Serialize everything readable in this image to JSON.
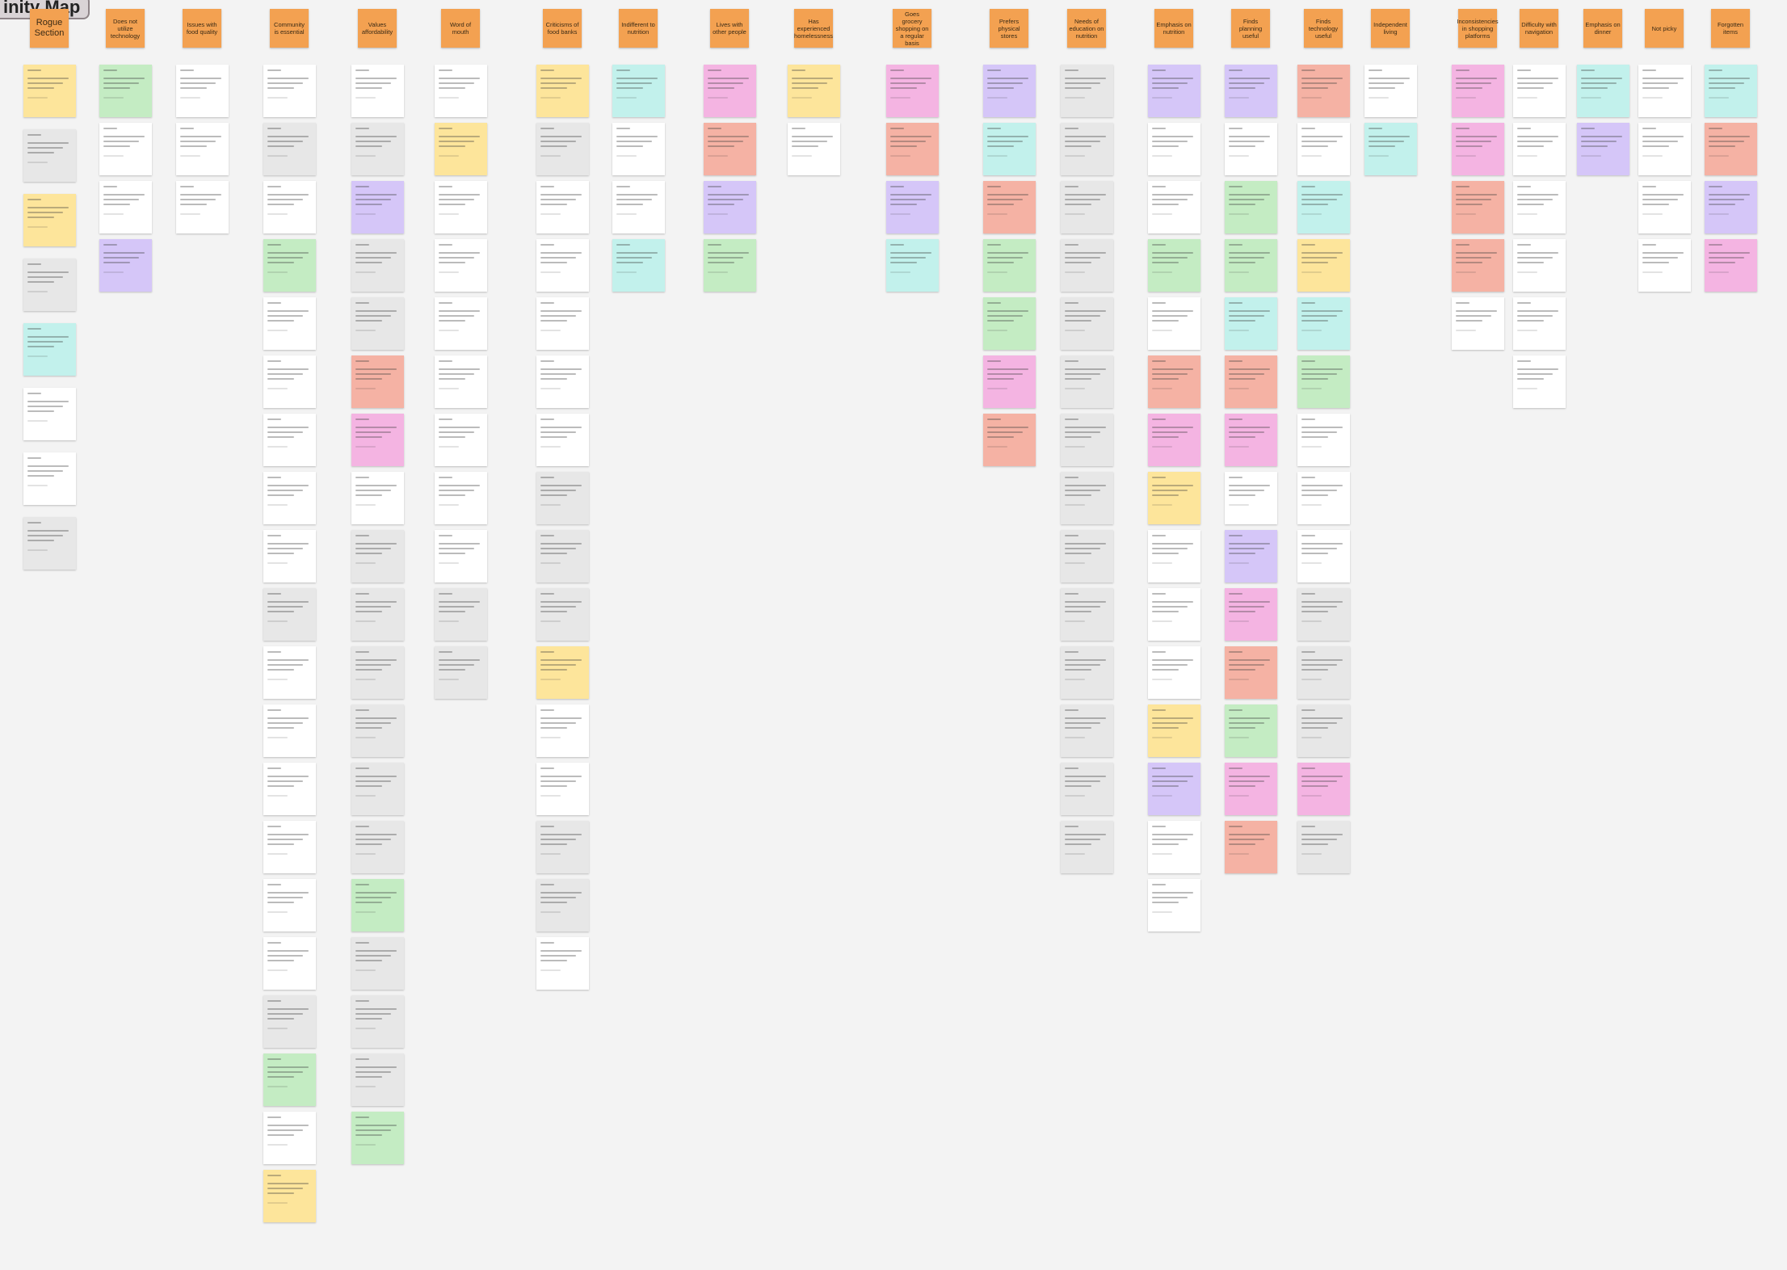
{
  "title": "inity Map",
  "columns": [
    {
      "header": "Rogue Section",
      "notes": [
        "#fde59b",
        "#e7e7e7",
        "#fde59b",
        "#e7e7e7",
        "#c2f1ec",
        "#ffffff",
        "#ffffff",
        "#e7e7e7"
      ]
    },
    {
      "header": "Does not utilize technology",
      "notes": [
        "#c4ecc3",
        "#ffffff",
        "#ffffff",
        "#d5c6f8"
      ]
    },
    {
      "header": "Issues with food quality",
      "notes": [
        "#ffffff",
        "#ffffff",
        "#ffffff"
      ]
    },
    {
      "header": "Community is essential",
      "notes": [
        "#ffffff",
        "#e7e7e7",
        "#ffffff",
        "#c4ecc3",
        "#ffffff",
        "#ffffff",
        "#ffffff",
        "#ffffff",
        "#ffffff",
        "#e7e7e7",
        "#ffffff",
        "#ffffff",
        "#ffffff",
        "#ffffff",
        "#ffffff",
        "#ffffff",
        "#e7e7e7",
        "#c4ecc3",
        "#ffffff",
        "#fde59b"
      ]
    },
    {
      "header": "Values affordability",
      "notes": [
        "#ffffff",
        "#e7e7e7",
        "#d5c6f8",
        "#e7e7e7",
        "#e7e7e7",
        "#f5b2a4",
        "#f4b4e2",
        "#ffffff",
        "#e7e7e7",
        "#e7e7e7",
        "#e7e7e7",
        "#e7e7e7",
        "#e7e7e7",
        "#e7e7e7",
        "#c4ecc3",
        "#e7e7e7",
        "#e7e7e7",
        "#e7e7e7",
        "#c4ecc3"
      ]
    },
    {
      "header": "Word of mouth",
      "notes": [
        "#ffffff",
        "#fde59b",
        "#ffffff",
        "#ffffff",
        "#ffffff",
        "#ffffff",
        "#ffffff",
        "#ffffff",
        "#ffffff",
        "#e7e7e7",
        "#e7e7e7"
      ]
    },
    {
      "header": "Criticisms of food banks",
      "notes": [
        "#fde59b",
        "#e7e7e7",
        "#ffffff",
        "#ffffff",
        "#ffffff",
        "#ffffff",
        "#ffffff",
        "#e7e7e7",
        "#e7e7e7",
        "#e7e7e7",
        "#fde59b",
        "#ffffff",
        "#ffffff",
        "#e7e7e7",
        "#e7e7e7",
        "#ffffff"
      ]
    },
    {
      "header": "Indifferent to nutrition",
      "notes": [
        "#c2f1ec",
        "#ffffff",
        "#ffffff",
        "#c2f1ec"
      ]
    },
    {
      "header": "Lives with other people",
      "notes": [
        "#f4b4e2",
        "#f5b2a4",
        "#d5c6f8",
        "#c4ecc3"
      ]
    },
    {
      "header": "Has experienced homelessness",
      "notes": [
        "#fde59b",
        "#ffffff"
      ]
    },
    {
      "header": "Goes grocery shopping on a regular basis",
      "notes": [
        "#f4b4e2",
        "#f5b2a4",
        "#d5c6f8",
        "#c2f1ec"
      ]
    },
    {
      "header": "Prefers physical stores",
      "notes": [
        "#d5c6f8",
        "#c2f1ec",
        "#f5b2a4",
        "#c4ecc3",
        "#c4ecc3",
        "#f4b4e2",
        "#f5b2a4"
      ]
    },
    {
      "header": "Needs of education on nutrition",
      "notes": [
        "#e7e7e7",
        "#e7e7e7",
        "#e7e7e7",
        "#e7e7e7",
        "#e7e7e7",
        "#e7e7e7",
        "#e7e7e7",
        "#e7e7e7",
        "#e7e7e7",
        "#e7e7e7",
        "#e7e7e7",
        "#e7e7e7",
        "#e7e7e7",
        "#e7e7e7"
      ]
    },
    {
      "header": "Emphasis on nutrition",
      "notes": [
        "#d5c6f8",
        "#ffffff",
        "#ffffff",
        "#c4ecc3",
        "#ffffff",
        "#f5b2a4",
        "#f4b4e2",
        "#fde59b",
        "#ffffff",
        "#ffffff",
        "#ffffff",
        "#fde59b",
        "#d5c6f8",
        "#ffffff",
        "#ffffff"
      ]
    },
    {
      "header": "Finds planning useful",
      "notes": [
        "#d5c6f8",
        "#ffffff",
        "#c4ecc3",
        "#c4ecc3",
        "#c2f1ec",
        "#f5b2a4",
        "#f4b4e2",
        "#ffffff",
        "#d5c6f8",
        "#f4b4e2",
        "#f5b2a4",
        "#c4ecc3",
        "#f4b4e2",
        "#f5b2a4"
      ]
    },
    {
      "header": "Finds technology useful",
      "notes": [
        "#f5b2a4",
        "#ffffff",
        "#c2f1ec",
        "#fde59b",
        "#c2f1ec",
        "#c4ecc3",
        "#ffffff",
        "#ffffff",
        "#ffffff",
        "#e7e7e7",
        "#e7e7e7",
        "#e7e7e7",
        "#f4b4e2",
        "#e7e7e7"
      ]
    },
    {
      "header": "Independent living",
      "notes": [
        "#ffffff",
        "#c2f1ec"
      ]
    },
    {
      "header": "Inconsistencies in shopping platforms",
      "notes": [
        "#f4b4e2",
        "#f4b4e2",
        "#f5b2a4",
        "#f5b2a4",
        "#ffffff"
      ]
    },
    {
      "header": "Difficulty with navigation",
      "notes": [
        "#ffffff",
        "#ffffff",
        "#ffffff",
        "#ffffff",
        "#ffffff",
        "#ffffff"
      ]
    },
    {
      "header": "Emphasis on dinner",
      "notes": [
        "#c2f1ec",
        "#d5c6f8"
      ]
    },
    {
      "header": "Not picky",
      "notes": [
        "#ffffff",
        "#ffffff",
        "#ffffff",
        "#ffffff"
      ]
    },
    {
      "header": "Forgotten items",
      "notes": [
        "#c2f1ec",
        "#f5b2a4",
        "#d5c6f8",
        "#f4b4e2"
      ]
    }
  ]
}
